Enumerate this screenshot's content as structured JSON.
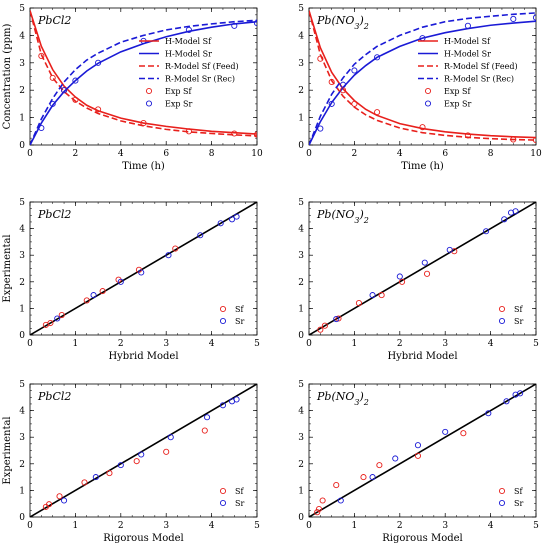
{
  "figure": {
    "colors": {
      "sf": "#e8201c",
      "sr": "#1a1ad6",
      "ideal": "#000000"
    }
  },
  "chart_data": [
    {
      "type": "line",
      "title": "PbCl2",
      "xlabel": "Time (h)",
      "ylabel": "Concentration (ppm)",
      "xlim": [
        0,
        10
      ],
      "ylim": [
        0,
        5
      ],
      "xticks": [
        "0",
        "2",
        "4",
        "6",
        "8",
        "10"
      ],
      "yticks": [
        "0",
        "1",
        "2",
        "3",
        "4",
        "5"
      ],
      "legend": "right",
      "series": [
        {
          "name": "H-Model Sf",
          "style": "solid",
          "color": "#e8201c",
          "x": [
            0,
            0.5,
            1,
            1.5,
            2,
            2.5,
            3,
            4,
            5,
            6,
            7,
            8,
            9,
            10
          ],
          "y": [
            4.9,
            3.6,
            2.75,
            2.15,
            1.75,
            1.45,
            1.25,
            0.98,
            0.8,
            0.68,
            0.58,
            0.5,
            0.45,
            0.4
          ]
        },
        {
          "name": "H-Model Sr",
          "style": "solid",
          "color": "#1a1ad6",
          "x": [
            0,
            0.5,
            1,
            1.5,
            2,
            2.5,
            3,
            4,
            5,
            6,
            7,
            8,
            9,
            10
          ],
          "y": [
            0,
            0.8,
            1.45,
            1.95,
            2.35,
            2.7,
            2.98,
            3.4,
            3.7,
            3.95,
            4.15,
            4.3,
            4.42,
            4.5
          ]
        },
        {
          "name": "R-Model Sf (Feed)",
          "style": "dashed",
          "color": "#e8201c",
          "x": [
            0,
            0.5,
            1,
            1.5,
            2,
            2.5,
            3,
            4,
            5,
            6,
            7,
            8,
            9,
            10
          ],
          "y": [
            4.9,
            3.3,
            2.45,
            1.95,
            1.6,
            1.35,
            1.15,
            0.88,
            0.7,
            0.57,
            0.48,
            0.42,
            0.37,
            0.33
          ]
        },
        {
          "name": "R-Model Sr (Rec)",
          "style": "dashed",
          "color": "#1a1ad6",
          "x": [
            0,
            0.5,
            1,
            1.5,
            2,
            2.5,
            3,
            4,
            5,
            6,
            7,
            8,
            9,
            10
          ],
          "y": [
            0,
            0.95,
            1.7,
            2.3,
            2.75,
            3.1,
            3.35,
            3.75,
            4.0,
            4.2,
            4.33,
            4.42,
            4.5,
            4.55
          ]
        },
        {
          "name": "Exp Sf",
          "style": "marker",
          "color": "#e8201c",
          "x": [
            0.5,
            1,
            1.5,
            2,
            3,
            5,
            7,
            9,
            10
          ],
          "y": [
            3.25,
            2.45,
            2.0,
            1.65,
            1.3,
            0.8,
            0.5,
            0.42,
            0.38
          ]
        },
        {
          "name": "Exp Sr",
          "style": "marker",
          "color": "#1a1ad6",
          "x": [
            0.5,
            1,
            1.5,
            2,
            3,
            5,
            7,
            9,
            10
          ],
          "y": [
            0.62,
            1.5,
            2.0,
            2.35,
            3.0,
            3.8,
            4.2,
            4.35,
            4.45
          ]
        }
      ]
    },
    {
      "type": "line",
      "title": "Pb(NO3)2",
      "xlabel": "Time (h)",
      "ylabel": "",
      "xlim": [
        0,
        10
      ],
      "ylim": [
        0,
        5
      ],
      "xticks": [
        "0",
        "2",
        "4",
        "6",
        "8",
        "10"
      ],
      "yticks": [
        "0",
        "1",
        "2",
        "3",
        "4",
        "5"
      ],
      "legend": "right",
      "series": [
        {
          "name": "H-Model Sf",
          "style": "solid",
          "color": "#e8201c",
          "x": [
            0,
            0.5,
            1,
            1.5,
            2,
            2.5,
            3,
            4,
            5,
            6,
            7,
            8,
            9,
            10
          ],
          "y": [
            4.9,
            3.55,
            2.65,
            2.05,
            1.62,
            1.3,
            1.08,
            0.78,
            0.6,
            0.48,
            0.4,
            0.34,
            0.3,
            0.27
          ]
        },
        {
          "name": "H-Model Sr",
          "style": "solid",
          "color": "#1a1ad6",
          "x": [
            0,
            0.5,
            1,
            1.5,
            2,
            2.5,
            3,
            4,
            5,
            6,
            7,
            8,
            9,
            10
          ],
          "y": [
            0,
            0.85,
            1.55,
            2.1,
            2.55,
            2.9,
            3.2,
            3.6,
            3.9,
            4.1,
            4.25,
            4.37,
            4.45,
            4.52
          ]
        },
        {
          "name": "R-Model Sf (Feed)",
          "style": "dashed",
          "color": "#e8201c",
          "x": [
            0,
            0.5,
            1,
            1.5,
            2,
            2.5,
            3,
            4,
            5,
            6,
            7,
            8,
            9,
            10
          ],
          "y": [
            4.9,
            3.3,
            2.35,
            1.78,
            1.38,
            1.1,
            0.9,
            0.62,
            0.45,
            0.35,
            0.28,
            0.23,
            0.2,
            0.18
          ]
        },
        {
          "name": "R-Model Sr (Rec)",
          "style": "dashed",
          "color": "#1a1ad6",
          "x": [
            0,
            0.5,
            1,
            1.5,
            2,
            2.5,
            3,
            4,
            5,
            6,
            7,
            8,
            9,
            10
          ],
          "y": [
            0,
            1.05,
            1.85,
            2.45,
            2.95,
            3.3,
            3.6,
            4.0,
            4.3,
            4.5,
            4.62,
            4.7,
            4.77,
            4.82
          ]
        },
        {
          "name": "Exp Sf",
          "style": "marker",
          "color": "#e8201c",
          "x": [
            0.5,
            1,
            1.5,
            2,
            3,
            5,
            7,
            9,
            10
          ],
          "y": [
            3.15,
            2.3,
            2.0,
            1.5,
            1.2,
            0.65,
            0.35,
            0.2,
            0.18
          ]
        },
        {
          "name": "Exp Sr",
          "style": "marker",
          "color": "#1a1ad6",
          "x": [
            0.5,
            1,
            1.5,
            2,
            3,
            5,
            7,
            9,
            10
          ],
          "y": [
            0.6,
            1.5,
            2.2,
            2.72,
            3.2,
            3.9,
            4.35,
            4.6,
            4.65
          ]
        }
      ]
    },
    {
      "type": "scatter",
      "title": "PbCl2",
      "xlabel": "Hybrid Model",
      "ylabel": "Experimental",
      "xlim": [
        0,
        5
      ],
      "ylim": [
        0,
        5
      ],
      "xticks": [
        "0",
        "1",
        "2",
        "3",
        "4",
        "5"
      ],
      "yticks": [
        "0",
        "1",
        "2",
        "3",
        "4",
        "5"
      ],
      "legend": "bottom-right",
      "ideal_line": [
        [
          0,
          0
        ],
        [
          5,
          5
        ]
      ],
      "series": [
        {
          "name": "Sf",
          "color": "#e8201c",
          "x": [
            0.35,
            0.45,
            0.7,
            1.25,
            1.6,
            1.95,
            2.4,
            3.2
          ],
          "y": [
            0.38,
            0.45,
            0.75,
            1.3,
            1.65,
            2.08,
            2.45,
            3.25
          ]
        },
        {
          "name": "Sr",
          "color": "#1a1ad6",
          "x": [
            0.6,
            1.4,
            2.0,
            2.45,
            3.05,
            3.75,
            4.2,
            4.45,
            4.55
          ],
          "y": [
            0.62,
            1.5,
            2.0,
            2.35,
            3.0,
            3.75,
            4.2,
            4.35,
            4.45
          ]
        }
      ]
    },
    {
      "type": "scatter",
      "title": "Pb(NO3)2",
      "xlabel": "Hybrid Model",
      "ylabel": "",
      "xlim": [
        0,
        5
      ],
      "ylim": [
        0,
        5
      ],
      "xticks": [
        "0",
        "1",
        "2",
        "3",
        "4",
        "5"
      ],
      "yticks": [
        "0",
        "1",
        "2",
        "3",
        "4",
        "5"
      ],
      "legend": "bottom-right",
      "ideal_line": [
        [
          0,
          0
        ],
        [
          5,
          5
        ]
      ],
      "series": [
        {
          "name": "Sf",
          "color": "#e8201c",
          "x": [
            0.25,
            0.35,
            0.65,
            1.1,
            1.6,
            2.05,
            2.6,
            3.2
          ],
          "y": [
            0.2,
            0.35,
            0.62,
            1.2,
            1.5,
            2.0,
            2.3,
            3.15
          ]
        },
        {
          "name": "Sr",
          "color": "#1a1ad6",
          "x": [
            0.6,
            1.4,
            2.0,
            2.55,
            3.1,
            3.9,
            4.3,
            4.45,
            4.55
          ],
          "y": [
            0.6,
            1.5,
            2.2,
            2.72,
            3.2,
            3.9,
            4.35,
            4.6,
            4.65
          ]
        }
      ]
    },
    {
      "type": "scatter",
      "title": "PbCl2",
      "xlabel": "Rigorous Model",
      "ylabel": "Experimental",
      "xlim": [
        0,
        5
      ],
      "ylim": [
        0,
        5
      ],
      "xticks": [
        "0",
        "1",
        "2",
        "3",
        "4",
        "5"
      ],
      "yticks": [
        "0",
        "1",
        "2",
        "3",
        "4",
        "5"
      ],
      "legend": "bottom-right",
      "ideal_line": [
        [
          0,
          0
        ],
        [
          5,
          5
        ]
      ],
      "series": [
        {
          "name": "Sf",
          "color": "#e8201c",
          "x": [
            0.35,
            0.42,
            0.65,
            1.2,
            1.75,
            2.35,
            3.0,
            3.85
          ],
          "y": [
            0.38,
            0.48,
            0.78,
            1.3,
            1.65,
            2.1,
            2.45,
            3.25
          ]
        },
        {
          "name": "Sr",
          "color": "#1a1ad6",
          "x": [
            0.75,
            1.45,
            2.0,
            2.45,
            3.1,
            3.9,
            4.25,
            4.45,
            4.55
          ],
          "y": [
            0.62,
            1.5,
            1.95,
            2.35,
            3.0,
            3.75,
            4.2,
            4.35,
            4.42
          ]
        }
      ]
    },
    {
      "type": "scatter",
      "title": "Pb(NO3)2",
      "xlabel": "Rigorous Model",
      "ylabel": "",
      "xlim": [
        0,
        5
      ],
      "ylim": [
        0,
        5
      ],
      "xticks": [
        "0",
        "1",
        "2",
        "3",
        "4",
        "5"
      ],
      "yticks": [
        "0",
        "1",
        "2",
        "3",
        "4",
        "5"
      ],
      "legend": "bottom-right",
      "ideal_line": [
        [
          0,
          0
        ],
        [
          5,
          5
        ]
      ],
      "series": [
        {
          "name": "Sf",
          "color": "#e8201c",
          "x": [
            0.18,
            0.22,
            0.3,
            0.6,
            1.2,
            1.55,
            2.4,
            3.4
          ],
          "y": [
            0.18,
            0.3,
            0.62,
            1.2,
            1.5,
            1.95,
            2.3,
            3.15
          ]
        },
        {
          "name": "Sr",
          "color": "#1a1ad6",
          "x": [
            0.7,
            1.4,
            1.9,
            2.4,
            3.0,
            3.95,
            4.35,
            4.55,
            4.65
          ],
          "y": [
            0.62,
            1.5,
            2.2,
            2.7,
            3.2,
            3.9,
            4.35,
            4.6,
            4.65
          ]
        }
      ]
    }
  ]
}
